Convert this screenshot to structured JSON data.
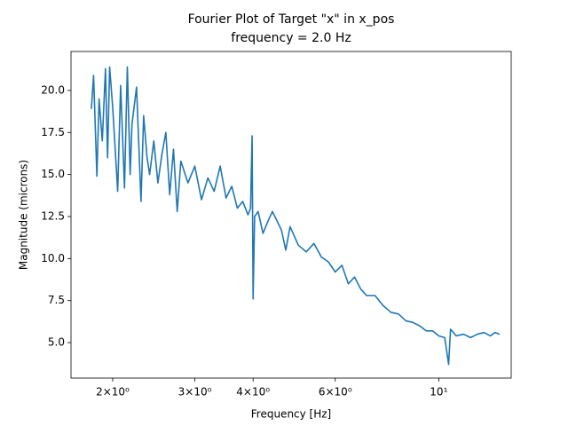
{
  "chart_data": {
    "type": "line",
    "title": "Fourier Plot of Target \"x\" in x_pos",
    "subtitle": "frequency = 2.0 Hz",
    "x_label": "Frequency [Hz]",
    "y_label": "Magnitude (microns)",
    "xscale": "log",
    "xlim": [
      1.628,
      14.3
    ],
    "ylim": [
      2.89,
      22.32
    ],
    "xticks": [
      {
        "value": 2,
        "label": "2×10⁰"
      },
      {
        "value": 3,
        "label": "3×10⁰"
      },
      {
        "value": 4,
        "label": "4×10⁰"
      },
      {
        "value": 6,
        "label": "6×10⁰"
      },
      {
        "value": 10,
        "label": "10¹"
      }
    ],
    "yticks": [
      {
        "value": 5,
        "label": "5.0"
      },
      7.5,
      {
        "value": 10,
        "label": "10.0"
      },
      12.5,
      {
        "value": 15,
        "label": "15.0"
      },
      17.5,
      {
        "value": 20,
        "label": "20.0"
      }
    ],
    "series": [
      {
        "color": "#1f77b4",
        "x": [
          1.8,
          1.82,
          1.85,
          1.87,
          1.9,
          1.93,
          1.95,
          1.97,
          2.0,
          2.05,
          2.08,
          2.12,
          2.15,
          2.18,
          2.2,
          2.25,
          2.3,
          2.33,
          2.37,
          2.4,
          2.45,
          2.5,
          2.55,
          2.6,
          2.65,
          2.7,
          2.75,
          2.8,
          2.9,
          3.0,
          3.1,
          3.2,
          3.3,
          3.4,
          3.5,
          3.6,
          3.7,
          3.8,
          3.9,
          3.95,
          3.98,
          4.0,
          4.03,
          4.1,
          4.2,
          4.3,
          4.4,
          4.6,
          4.7,
          4.8,
          5.0,
          5.2,
          5.4,
          5.6,
          5.8,
          6.0,
          6.2,
          6.4,
          6.6,
          6.8,
          7.0,
          7.3,
          7.6,
          7.9,
          8.2,
          8.5,
          8.8,
          9.1,
          9.4,
          9.7,
          10.0,
          10.3,
          10.5,
          10.6,
          10.9,
          11.3,
          11.7,
          12.1,
          12.5,
          12.9,
          13.2,
          13.5
        ],
        "values": [
          18.9,
          20.9,
          14.9,
          19.5,
          17.0,
          21.3,
          16.0,
          21.4,
          19.0,
          14.0,
          20.3,
          14.2,
          21.4,
          15.0,
          18.0,
          20.2,
          13.4,
          18.5,
          16.0,
          15.0,
          17.0,
          14.5,
          16.2,
          17.5,
          13.8,
          16.5,
          12.8,
          15.8,
          14.5,
          15.5,
          13.5,
          14.8,
          14.0,
          15.5,
          13.6,
          14.3,
          13.0,
          13.4,
          12.6,
          13.0,
          17.3,
          7.6,
          12.5,
          12.8,
          11.5,
          12.2,
          12.8,
          11.7,
          10.5,
          11.9,
          10.8,
          10.4,
          10.9,
          10.1,
          9.8,
          9.2,
          9.6,
          8.5,
          8.9,
          8.2,
          7.8,
          7.8,
          7.2,
          6.8,
          6.7,
          6.3,
          6.2,
          6.0,
          5.7,
          5.7,
          5.4,
          5.3,
          3.7,
          5.8,
          5.4,
          5.5,
          5.3,
          5.5,
          5.6,
          5.4,
          5.6,
          5.5
        ]
      }
    ]
  }
}
